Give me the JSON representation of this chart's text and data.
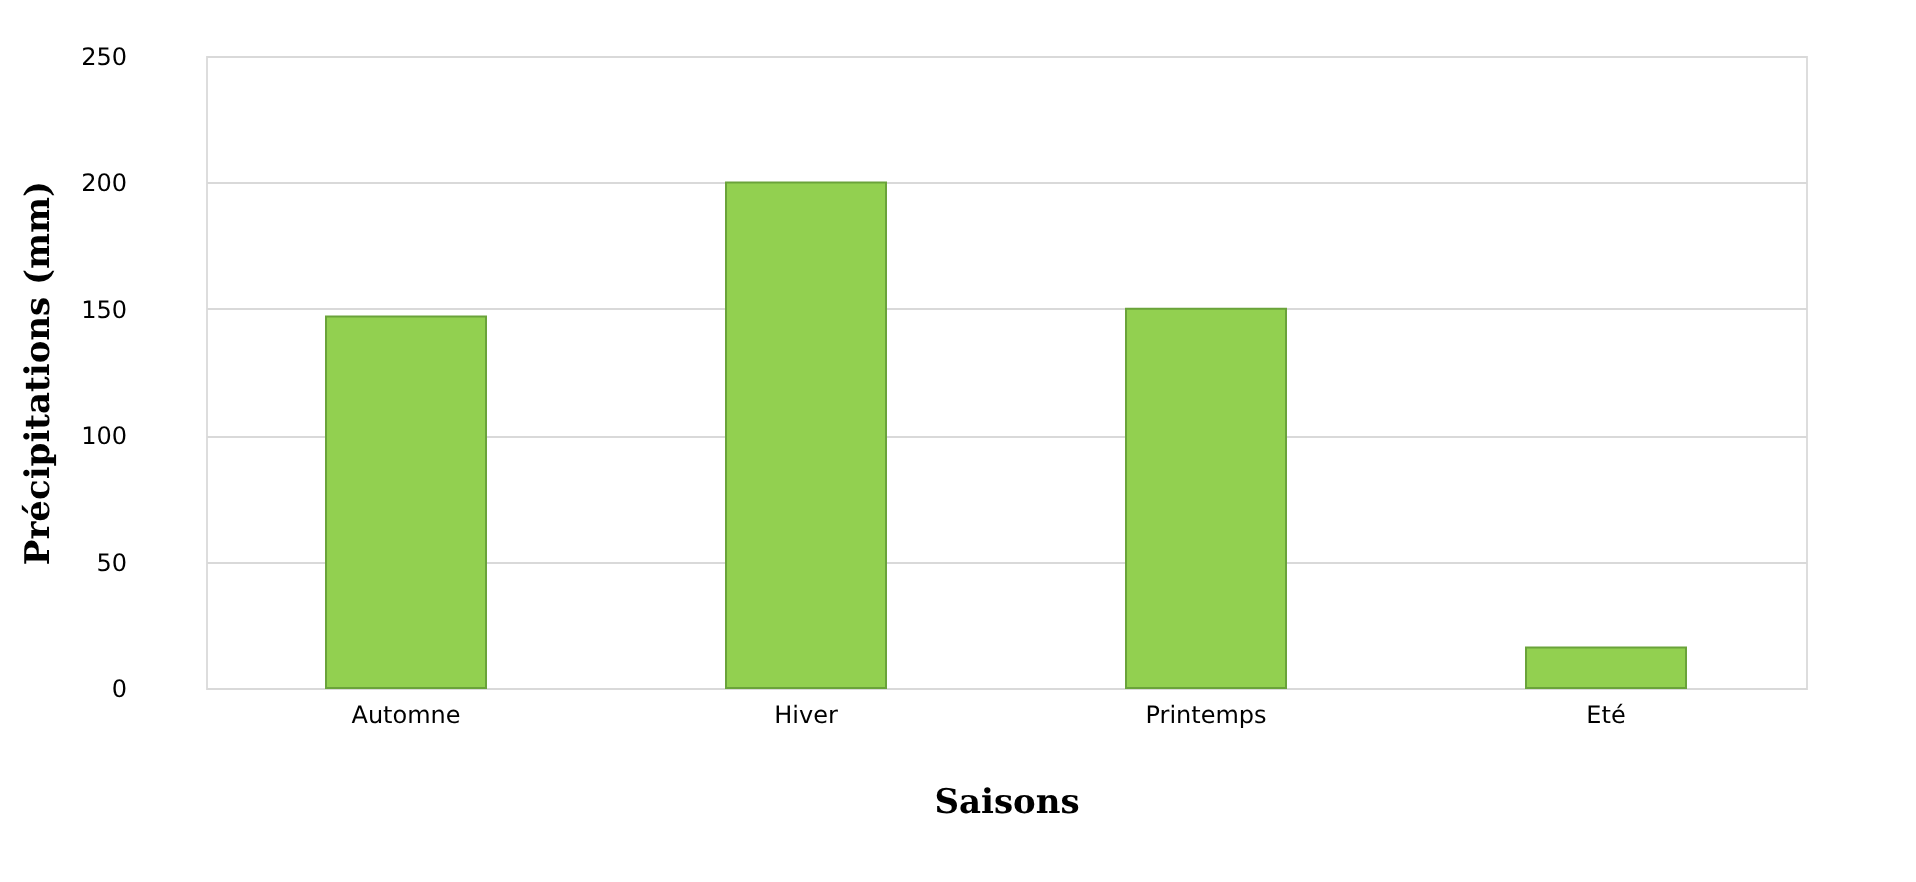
{
  "chart_data": {
    "type": "bar",
    "xlabel": "Saisons",
    "ylabel": "Précipitations (mm)",
    "categories": [
      "Automne",
      "Hiver",
      "Printemps",
      "Eté"
    ],
    "values": [
      147,
      200,
      150,
      16
    ],
    "color": "#92d050",
    "ylim": [
      0,
      250
    ],
    "yticks": [
      0,
      50,
      100,
      150,
      200,
      250
    ],
    "grid": "y"
  }
}
